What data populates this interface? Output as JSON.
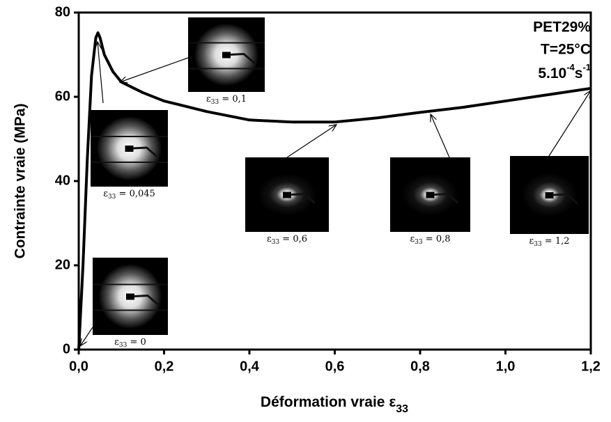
{
  "chart_data": {
    "type": "line",
    "x_label": "Déformation vraie ",
    "x_label_symbol": "ε",
    "x_label_sub": "33",
    "y_label": "Contrainte vraie (MPa)",
    "x": [
      0,
      0.01,
      0.02,
      0.03,
      0.04,
      0.045,
      0.05,
      0.06,
      0.08,
      0.1,
      0.15,
      0.2,
      0.3,
      0.4,
      0.5,
      0.6,
      0.7,
      0.8,
      0.9,
      1.0,
      1.1,
      1.2
    ],
    "series": [
      {
        "color": "#000000",
        "values": [
          0,
          20,
          45,
          65,
          74,
          75.2,
          74,
          70,
          66,
          63.5,
          61,
          59,
          56.5,
          54.5,
          54,
          54,
          55,
          56.3,
          57.5,
          59,
          60.5,
          62
        ]
      }
    ],
    "xlim": [
      0,
      1.2
    ],
    "ylim": [
      0,
      80
    ],
    "xticks": [
      {
        "value": 0,
        "label": "0,0"
      },
      {
        "value": 0.2,
        "label": "0,2"
      },
      {
        "value": 0.4,
        "label": "0,4"
      },
      {
        "value": 0.6,
        "label": "0,6"
      },
      {
        "value": 0.8,
        "label": "0,8"
      },
      {
        "value": 1.0,
        "label": "1,0"
      },
      {
        "value": 1.2,
        "label": "1,2"
      }
    ],
    "yticks": [
      0,
      20,
      40,
      60,
      80
    ],
    "annotations": [
      "PET29%",
      "T=25°C"
    ],
    "rate": {
      "base": "5.10",
      "exp1": "-4",
      "unit": "s",
      "exp2": "-1"
    },
    "insets": [
      {
        "symbol": "ε",
        "sub": "33",
        "label": " = 0"
      },
      {
        "symbol": "ε",
        "sub": "33",
        "label": " = 0,045"
      },
      {
        "symbol": "ε",
        "sub": "33",
        "label": " = 0,1"
      },
      {
        "symbol": "ε",
        "sub": "33",
        "label": " = 0,6"
      },
      {
        "symbol": "ε",
        "sub": "33",
        "label": " = 0,8"
      },
      {
        "symbol": "ε",
        "sub": "33",
        "label": " = 1,2"
      }
    ]
  }
}
